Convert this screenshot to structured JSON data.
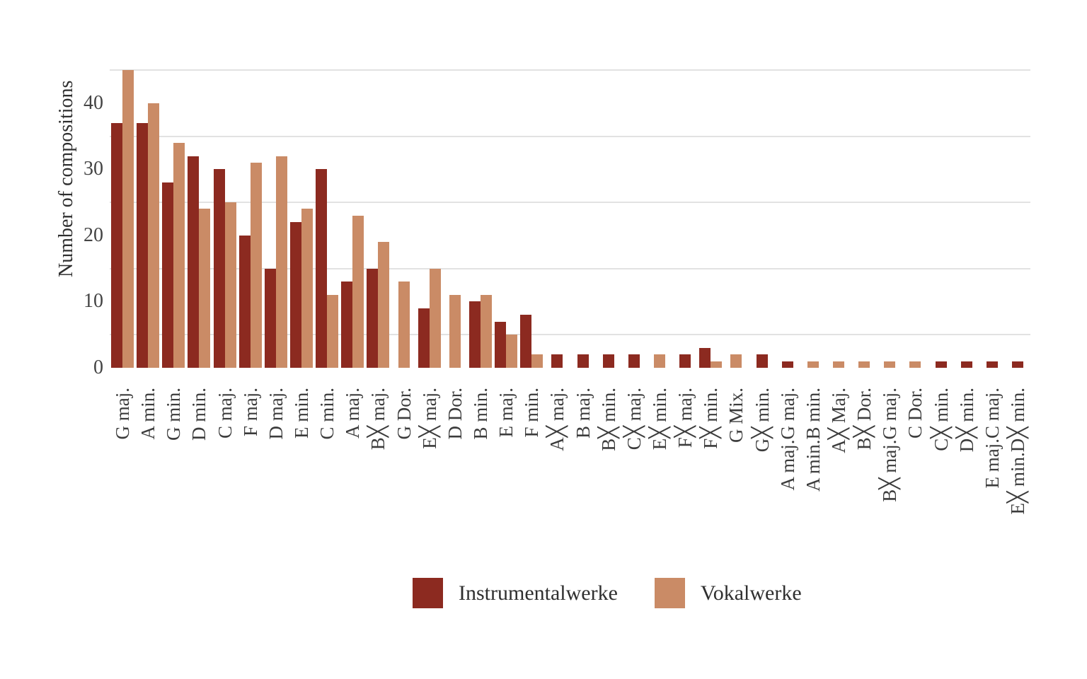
{
  "chart_data": {
    "type": "bar",
    "title": "",
    "xlabel": "",
    "ylabel": "Number of compositions",
    "ylim": [
      0,
      45
    ],
    "yticks": [
      0,
      10,
      20,
      30,
      40
    ],
    "gridline_values": [
      5,
      15,
      25,
      35,
      45
    ],
    "grid": "horizontal-only",
    "legend_position": "bottom-center",
    "categories": [
      "G maj.",
      "A min.",
      "G min.",
      "D min.",
      "C maj.",
      "F maj.",
      "D maj.",
      "E min.",
      "C min.",
      "A maj.",
      "B╳ maj.",
      "G Dor.",
      "E╳ maj.",
      "D Dor.",
      "B min.",
      "E maj.",
      "F min.",
      "A╳ maj.",
      "B maj.",
      "B╳ min.",
      "C╳ maj.",
      "E╳ min.",
      "F╳ maj.",
      "F╳ min.",
      "G Mix.",
      "G╳ min.",
      "A maj.G maj.",
      "A min.B min.",
      "A╳ Maj.",
      "B╳ Dor.",
      "B╳ maj.G maj.",
      "C Dor.",
      "C╳ min.",
      "D╳ min.",
      "E maj.C maj.",
      "E╳ min.D╳ min."
    ],
    "series": [
      {
        "name": "Instrumentalwerke",
        "color": "#8C2A20",
        "values": [
          37,
          37,
          28,
          32,
          30,
          20,
          15,
          22,
          30,
          13,
          15,
          null,
          9,
          null,
          10,
          7,
          8,
          2,
          2,
          2,
          2,
          null,
          2,
          3,
          null,
          2,
          1,
          null,
          null,
          null,
          null,
          null,
          1,
          1,
          1,
          1
        ]
      },
      {
        "name": "Vokalwerke",
        "color": "#CA8B66",
        "values": [
          45,
          40,
          34,
          24,
          25,
          31,
          32,
          24,
          11,
          23,
          19,
          13,
          15,
          11,
          11,
          5,
          2,
          null,
          null,
          null,
          null,
          2,
          null,
          1,
          2,
          null,
          null,
          1,
          1,
          1,
          1,
          1,
          null,
          null,
          null,
          null
        ]
      }
    ]
  },
  "legend": {
    "items": [
      {
        "label": "Instrumentalwerke"
      },
      {
        "label": "Vokalwerke"
      }
    ]
  }
}
